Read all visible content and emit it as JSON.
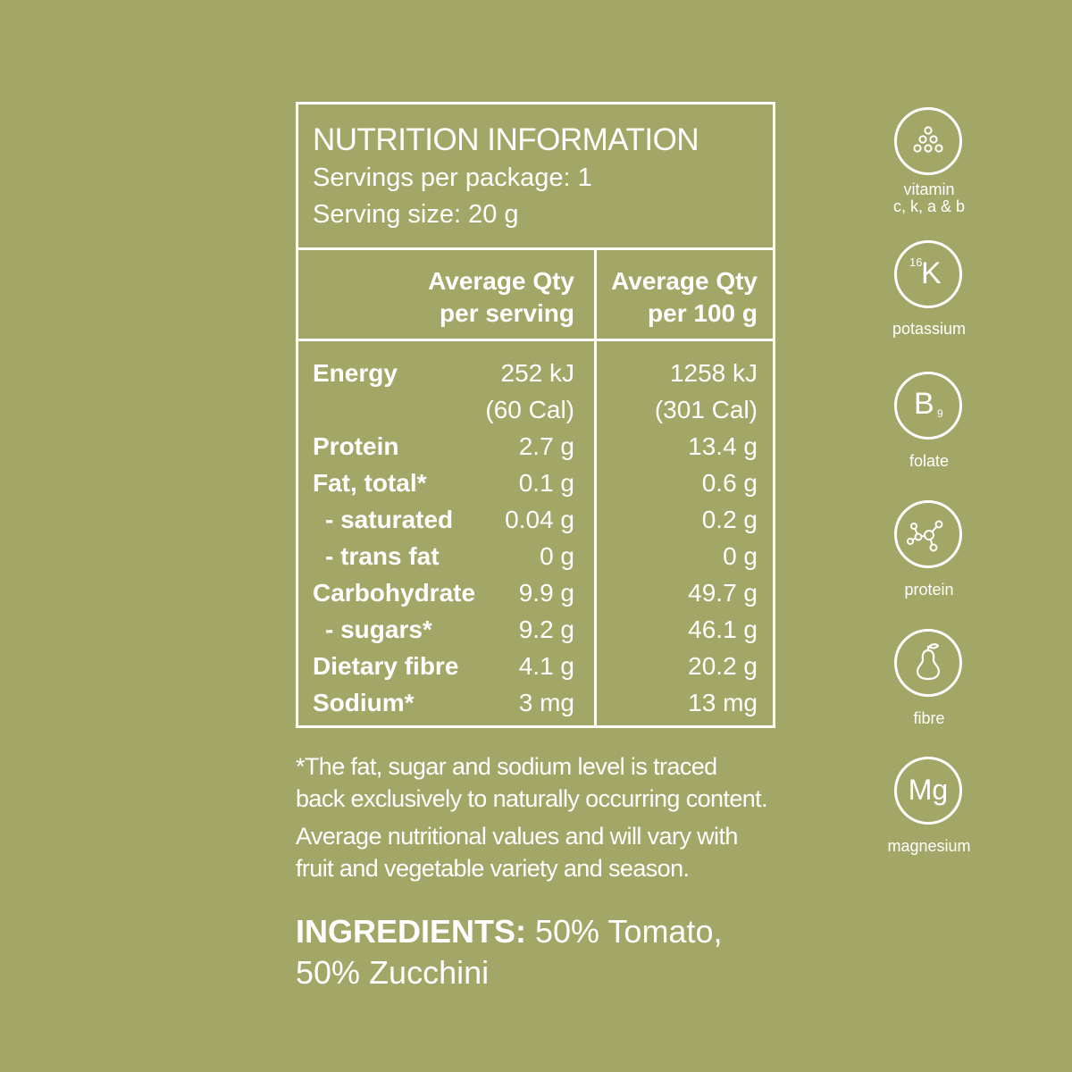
{
  "panel": {
    "title": "NUTRITION INFORMATION",
    "servings": "Servings per package: 1",
    "serving_size": "Serving size: 20 g",
    "col1": [
      "Average Qty",
      "per serving"
    ],
    "col2": [
      "Average Qty",
      "per 100 g"
    ],
    "rows": [
      {
        "label": "Energy",
        "per_serving": "252 kJ",
        "per_100g": "1258 kJ"
      },
      {
        "label": "",
        "per_serving": "(60 Cal)",
        "per_100g": "(301 Cal)"
      },
      {
        "label": "Protein",
        "per_serving": "2.7 g",
        "per_100g": "13.4 g"
      },
      {
        "label": "Fat, total*",
        "per_serving": "0.1 g",
        "per_100g": "0.6 g"
      },
      {
        "label": "- saturated",
        "per_serving": "0.04 g",
        "per_100g": "0.2 g"
      },
      {
        "label": "- trans fat",
        "per_serving": "0 g",
        "per_100g": "0 g"
      },
      {
        "label": "Carbohydrate",
        "per_serving": "9.9 g",
        "per_100g": "49.7 g"
      },
      {
        "label": "- sugars*",
        "per_serving": "9.2 g",
        "per_100g": "46.1 g"
      },
      {
        "label": "Dietary fibre",
        "per_serving": "4.1 g",
        "per_100g": "20.2 g"
      },
      {
        "label": "Sodium*",
        "per_serving": "3 mg",
        "per_100g": "13 mg"
      }
    ]
  },
  "notes": {
    "footnote_1": "*The fat, sugar and sodium level is traced",
    "footnote_2": "back exclusively to naturally occurring content.",
    "footnote_3": "Average nutritional values and will vary with",
    "footnote_4": "fruit and vegetable variety and season."
  },
  "ingredients": {
    "label": "INGREDIENTS:",
    "line1": " 50% Tomato,",
    "line2": "50% Zucchini"
  },
  "icons": {
    "vitamin": {
      "icon": "dots-pyramid-icon",
      "label_1": "vitamin",
      "label_2": "c, k, a & b"
    },
    "potassium": {
      "icon": "potassium-icon",
      "symbol": "K",
      "number": "16",
      "label": "potassium"
    },
    "folate": {
      "icon": "folate-icon",
      "symbol": "B",
      "subscript": "9",
      "label": "folate"
    },
    "protein": {
      "icon": "molecule-icon",
      "label": "protein"
    },
    "fibre": {
      "icon": "pear-icon",
      "label": "fibre"
    },
    "magnesium": {
      "icon": "magnesium-icon",
      "symbol": "Mg",
      "label": "magnesium"
    }
  },
  "colors": {
    "background": "#a2a666",
    "foreground": "#ffffff"
  }
}
